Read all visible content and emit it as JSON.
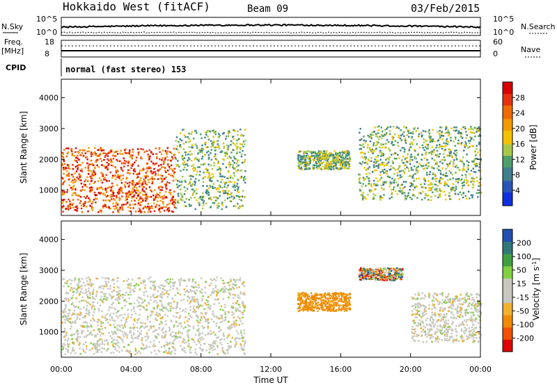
{
  "header": {
    "station": "Hokkaido West (fitACF)",
    "beam": "Beam 09",
    "date": "03/Feb/2015"
  },
  "noise_panel": {
    "left_label": "N.Sky",
    "right_label": "N.Search",
    "ticks_left": [
      "10^5",
      "10^0"
    ],
    "ticks_right": [
      "10^5",
      "10^0"
    ]
  },
  "freq_panel": {
    "left_label_line1": "Freq.",
    "left_label_line2": "[MHz]",
    "right_label": "Nave",
    "ticks_left": [
      "18",
      "8"
    ],
    "ticks_right": [
      "60",
      "0"
    ]
  },
  "cpid_panel": {
    "label": "CPID",
    "text": "normal (fast stereo) 153"
  },
  "x_axis": {
    "label": "Time UT",
    "tick_labels": [
      "00:00",
      "04:00",
      "08:00",
      "12:00",
      "16:00",
      "20:00",
      "00:00"
    ]
  },
  "colors": {
    "power_scale": [
      "#1030e0",
      "#2a55b8",
      "#3f7f8f",
      "#4d9e6a",
      "#a8c84a",
      "#f2c200",
      "#f59a00",
      "#f06a00",
      "#e83010",
      "#d80000"
    ],
    "velocity_scale": [
      "#e00000",
      "#f05000",
      "#f08a00",
      "#f0b030",
      "#c8c8c0",
      "#c8c8c0",
      "#80d040",
      "#40a040",
      "#307878",
      "#2050b0"
    ]
  },
  "chart_data": [
    {
      "type": "heatmap",
      "panel": "power",
      "ylabel": "Slant Range [km]",
      "xlabel": "Time UT",
      "xlim": [
        0,
        24
      ],
      "ylim": [
        180,
        4600
      ],
      "y_ticks": [
        1000,
        2000,
        3000,
        4000
      ],
      "colorbar": {
        "label": "Power [dB]",
        "range": [
          0,
          32
        ],
        "ticks": [
          "4",
          "8",
          "12",
          "16",
          "20",
          "24",
          "28"
        ]
      },
      "regions": [
        {
          "description": "ionospheric echoes 00:00-06:30",
          "t": [
            0,
            6.5
          ],
          "range_km": [
            300,
            2400
          ],
          "level": "high"
        },
        {
          "description": "band rising to 3000 km",
          "t": [
            6.5,
            10.5
          ],
          "range_km": [
            400,
            3000
          ],
          "level": "medium"
        },
        {
          "description": "cluster near 2000 km",
          "t": [
            13.5,
            16.5
          ],
          "range_km": [
            1700,
            2300
          ],
          "level": "medium"
        },
        {
          "description": "decending band",
          "t": [
            17,
            24
          ],
          "range_km": [
            700,
            3100
          ],
          "level": "medium"
        }
      ]
    },
    {
      "type": "heatmap",
      "panel": "velocity",
      "ylabel": "Slant Range [km]",
      "xlabel": "Time UT",
      "xlim": [
        0,
        24
      ],
      "ylim": [
        180,
        4600
      ],
      "y_ticks": [
        1000,
        2000,
        3000,
        4000
      ],
      "colorbar": {
        "label": "Velocity [m s^-1]",
        "ticks": [
          "200",
          "100",
          "50",
          "15",
          "-15",
          "-50",
          "-100",
          "-200"
        ]
      },
      "regions": [
        {
          "description": "ground scatter near 0 m/s",
          "t": [
            0,
            10.5
          ],
          "range_km": [
            300,
            2800
          ],
          "velocity": "low"
        },
        {
          "description": "negative velocity cluster",
          "t": [
            13.5,
            16.5
          ],
          "range_km": [
            1700,
            2300
          ],
          "velocity": -50
        },
        {
          "description": "mixed near 3000 km",
          "t": [
            17,
            19.5
          ],
          "range_km": [
            2700,
            3100
          ],
          "velocity": "mixed"
        },
        {
          "description": "ground scatter band",
          "t": [
            20,
            24
          ],
          "range_km": [
            700,
            2300
          ],
          "velocity": "low"
        }
      ]
    }
  ]
}
